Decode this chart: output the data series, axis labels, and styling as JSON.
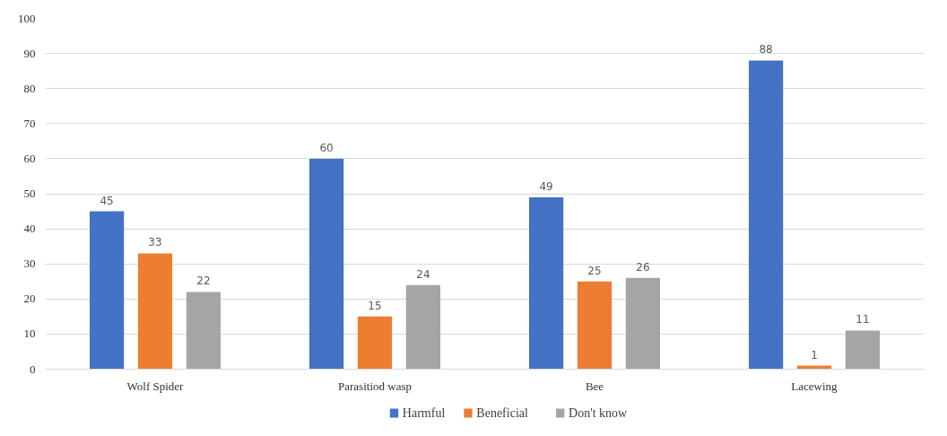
{
  "chart_data": {
    "type": "bar",
    "categories": [
      "Wolf Spider",
      "Parasitiod wasp",
      "Bee",
      "Lacewing"
    ],
    "series": [
      {
        "name": "Harmful",
        "color": "#4472c4",
        "values": [
          45,
          60,
          49,
          88
        ]
      },
      {
        "name": "Beneficial",
        "color": "#ed7d31",
        "values": [
          33,
          15,
          25,
          1
        ]
      },
      {
        "name": "Don't know",
        "color": "#a5a5a5",
        "values": [
          22,
          24,
          26,
          11
        ]
      }
    ],
    "ylim": [
      0,
      100
    ],
    "yticks": [
      0,
      10,
      20,
      30,
      40,
      50,
      60,
      70,
      80,
      90,
      100
    ],
    "grid": "y",
    "legend": "bottom",
    "data_labels": true
  }
}
